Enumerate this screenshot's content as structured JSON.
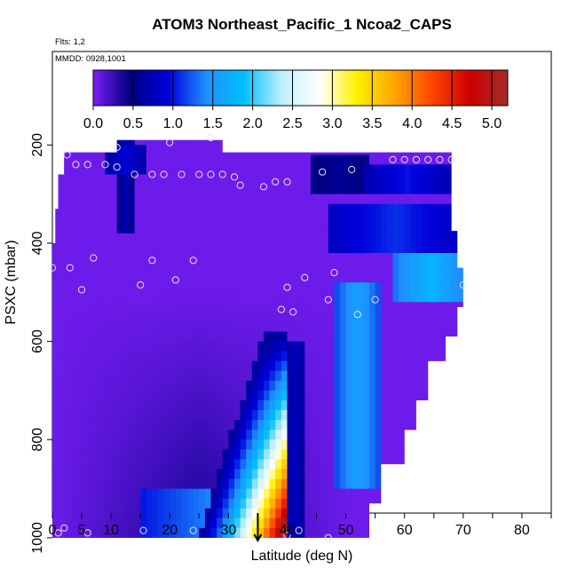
{
  "chart_data": {
    "type": "heatmap",
    "title": "ATOM3 Northeast_Pacific_1 Ncoa2_CAPS",
    "annotations": {
      "flights": "Flts: 1,2",
      "dates": "MMDD: 0928,1001"
    },
    "xlabel": "Latitude (deg N)",
    "ylabel": "PSXC (mbar)",
    "xlim": [
      0,
      85
    ],
    "ylim": [
      1000,
      0
    ],
    "x_ticks": [
      0,
      5,
      10,
      20,
      30,
      40,
      50,
      60,
      70,
      80
    ],
    "y_ticks": [
      200,
      400,
      600,
      800,
      1000
    ],
    "colorbar": {
      "range": [
        0,
        5.2
      ],
      "ticks": [
        0.0,
        0.5,
        1.0,
        1.5,
        2.0,
        2.5,
        3.0,
        3.5,
        4.0,
        4.5,
        5.0
      ],
      "tick_labels": [
        "0.0",
        "0.5",
        "1.0",
        "1.5",
        "2.0",
        "2.5",
        "3.0",
        "3.5",
        "4.0",
        "4.5",
        "5.0"
      ],
      "colors": [
        "#7a1ef6",
        "#000080",
        "#0000dd",
        "#1e90ff",
        "#00bfff",
        "#bfefff",
        "#ffffff",
        "#fff000",
        "#ffa500",
        "#ff4500",
        "#cc0000",
        "#a52a2a"
      ]
    },
    "marker_latitude": 35,
    "domain_outline": [
      [
        0,
        450
      ],
      [
        0,
        1000
      ],
      [
        54,
        1000
      ],
      [
        54,
        930
      ],
      [
        56,
        930
      ],
      [
        56,
        850
      ],
      [
        60,
        850
      ],
      [
        60,
        780
      ],
      [
        62,
        780
      ],
      [
        62,
        720
      ],
      [
        64,
        720
      ],
      [
        64,
        640
      ],
      [
        67,
        640
      ],
      [
        67,
        590
      ],
      [
        69,
        590
      ],
      [
        69,
        530
      ],
      [
        70,
        530
      ],
      [
        70,
        450
      ],
      [
        69,
        450
      ],
      [
        69,
        375
      ],
      [
        68,
        375
      ],
      [
        68,
        315
      ],
      [
        68,
        300
      ],
      [
        68,
        255
      ],
      [
        68,
        215
      ],
      [
        58,
        215
      ],
      [
        53,
        215
      ],
      [
        29,
        215
      ],
      [
        29,
        190
      ],
      [
        11,
        190
      ],
      [
        11,
        215
      ],
      [
        2,
        215
      ],
      [
        2,
        260
      ],
      [
        1,
        260
      ],
      [
        1,
        330
      ],
      [
        0.5,
        330
      ],
      [
        0.5,
        400
      ],
      [
        0,
        400
      ]
    ],
    "fields": [
      {
        "lat_range": [
          11,
          14
        ],
        "p_range": [
          190,
          380
        ],
        "value": 0.7
      },
      {
        "lat_range": [
          9,
          16
        ],
        "p_range": [
          200,
          260
        ],
        "value": 0.9
      },
      {
        "lat_range": [
          15,
          40
        ],
        "p_range": [
          900,
          1000
        ],
        "value": 1.4
      },
      {
        "lat_range": [
          44,
          54
        ],
        "p_range": [
          230,
          310
        ],
        "value": 0.6
      },
      {
        "lat_range": [
          53,
          68
        ],
        "p_range": [
          250,
          310
        ],
        "value": 1.0
      },
      {
        "lat_range": [
          47,
          70
        ],
        "p_range": [
          320,
          420
        ],
        "value": 1.1
      },
      {
        "lat_range": [
          58,
          71
        ],
        "p_range": [
          430,
          530
        ],
        "value": 1.8
      },
      {
        "lat_range": [
          48,
          56
        ],
        "p_range": [
          480,
          900
        ],
        "value": 1.6
      },
      {
        "lat_range": [
          39.5,
          43
        ],
        "p_range": [
          600,
          1000
        ],
        "value": 0.8
      }
    ],
    "plume": {
      "top_p": 580,
      "bottom_p": 1000,
      "top_lats": [
        36,
        40
      ],
      "bottom_lats": [
        25,
        40
      ],
      "core_peak": 5.0
    },
    "points": [
      [
        0,
        450
      ],
      [
        1,
        990
      ],
      [
        2,
        980
      ],
      [
        3,
        450
      ],
      [
        5,
        495
      ],
      [
        6,
        990
      ],
      [
        7,
        430
      ],
      [
        15,
        485
      ],
      [
        15.5,
        985
      ],
      [
        17,
        435
      ],
      [
        21,
        475
      ],
      [
        24,
        985
      ],
      [
        24,
        435
      ],
      [
        2.5,
        220
      ],
      [
        4,
        240
      ],
      [
        6,
        240
      ],
      [
        9,
        240
      ],
      [
        11,
        245
      ],
      [
        11,
        205
      ],
      [
        14,
        260
      ],
      [
        17,
        260
      ],
      [
        19,
        260
      ],
      [
        20,
        195
      ],
      [
        22,
        260
      ],
      [
        25,
        260
      ],
      [
        27,
        185
      ],
      [
        27,
        260
      ],
      [
        29,
        260
      ],
      [
        31,
        265
      ],
      [
        32,
        282
      ],
      [
        36,
        285
      ],
      [
        38,
        275
      ],
      [
        40,
        275
      ],
      [
        43,
        470
      ],
      [
        46,
        255
      ],
      [
        47,
        515
      ],
      [
        48,
        460
      ],
      [
        51,
        250
      ],
      [
        52,
        545
      ],
      [
        55,
        515
      ],
      [
        39,
        535
      ],
      [
        40,
        490
      ],
      [
        41,
        540
      ],
      [
        40,
        995
      ],
      [
        42,
        985
      ],
      [
        47,
        1000
      ],
      [
        58,
        230
      ],
      [
        60,
        230
      ],
      [
        62,
        230
      ],
      [
        64,
        230
      ],
      [
        66,
        230
      ],
      [
        68,
        230
      ],
      [
        70,
        485
      ]
    ]
  }
}
